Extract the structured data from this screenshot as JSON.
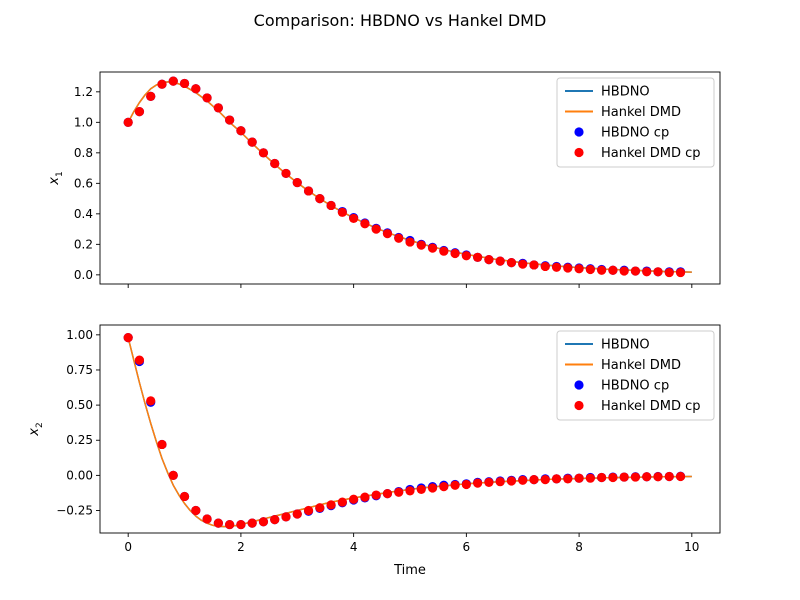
{
  "figure_title": "Comparison: HBDNO vs Hankel DMD",
  "colors": {
    "hbdno": "#1f77b4",
    "hankel": "#ff7f0e",
    "hbdno_cp": "#0000ff",
    "hankel_cp": "#ff0000"
  },
  "chart_data": [
    {
      "type": "line",
      "title": "",
      "xlabel": "",
      "ylabel": "x",
      "ylabel_sub": "1",
      "xlim": [
        -0.5,
        10.5
      ],
      "ylim": [
        -0.06,
        1.33
      ],
      "xticks": [
        0,
        2,
        4,
        6,
        8,
        10
      ],
      "yticks": [
        0.0,
        0.2,
        0.4,
        0.6,
        0.8,
        1.0,
        1.2
      ],
      "ytick_labels": [
        "0.0",
        "0.2",
        "0.4",
        "0.6",
        "0.8",
        "1.0",
        "1.2"
      ],
      "show_xtick_labels": false,
      "legend_position": "upper right",
      "legend": [
        "HBDNO",
        "Hankel DMD",
        "HBDNO cp",
        "Hankel DMD cp"
      ],
      "series": [
        {
          "name": "HBDNO",
          "kind": "line",
          "x": [
            0,
            0.1,
            0.2,
            0.3,
            0.4,
            0.5,
            0.6,
            0.7,
            0.8,
            0.9,
            1.0,
            1.2,
            1.4,
            1.6,
            1.8,
            2.0,
            2.2,
            2.4,
            2.6,
            2.8,
            3.0,
            3.2,
            3.4,
            3.6,
            3.8,
            4.0,
            4.4,
            4.8,
            5.2,
            5.6,
            6.0,
            6.5,
            7.0,
            7.5,
            8.0,
            8.5,
            9.0,
            9.5,
            10.0
          ],
          "y": [
            1.0,
            1.07,
            1.13,
            1.18,
            1.22,
            1.245,
            1.26,
            1.265,
            1.262,
            1.252,
            1.237,
            1.195,
            1.14,
            1.075,
            1.0,
            0.935,
            0.862,
            0.792,
            0.725,
            0.662,
            0.604,
            0.55,
            0.5,
            0.454,
            0.412,
            0.374,
            0.306,
            0.25,
            0.203,
            0.165,
            0.134,
            0.103,
            0.079,
            0.061,
            0.047,
            0.037,
            0.029,
            0.022,
            0.018
          ]
        },
        {
          "name": "Hankel DMD",
          "kind": "line",
          "x": [
            0,
            0.1,
            0.2,
            0.3,
            0.4,
            0.5,
            0.6,
            0.7,
            0.8,
            0.9,
            1.0,
            1.2,
            1.4,
            1.6,
            1.8,
            2.0,
            2.2,
            2.4,
            2.6,
            2.8,
            3.0,
            3.2,
            3.4,
            3.6,
            3.8,
            4.0,
            4.4,
            4.8,
            5.2,
            5.6,
            6.0,
            6.5,
            7.0,
            7.5,
            8.0,
            8.5,
            9.0,
            9.5,
            10.0
          ],
          "y": [
            1.0,
            1.07,
            1.13,
            1.18,
            1.22,
            1.245,
            1.26,
            1.265,
            1.262,
            1.252,
            1.237,
            1.195,
            1.14,
            1.075,
            1.0,
            0.935,
            0.862,
            0.792,
            0.725,
            0.662,
            0.604,
            0.55,
            0.5,
            0.454,
            0.412,
            0.374,
            0.306,
            0.25,
            0.203,
            0.165,
            0.134,
            0.103,
            0.079,
            0.061,
            0.047,
            0.037,
            0.029,
            0.022,
            0.018
          ]
        },
        {
          "name": "HBDNO cp",
          "kind": "scatter",
          "x": [
            0.0,
            0.2,
            0.4,
            0.6,
            0.8,
            1.0,
            1.2,
            1.4,
            1.6,
            1.8,
            2.0,
            2.2,
            2.4,
            2.6,
            2.8,
            3.0,
            3.2,
            3.4,
            3.6,
            3.8,
            4.0,
            4.2,
            4.4,
            4.6,
            4.8,
            5.0,
            5.2,
            5.4,
            5.6,
            5.8,
            6.0,
            6.2,
            6.4,
            6.6,
            6.8,
            7.0,
            7.2,
            7.4,
            7.6,
            7.8,
            8.0,
            8.2,
            8.4,
            8.6,
            8.8,
            9.0,
            9.2,
            9.4,
            9.6,
            9.8
          ],
          "y": [
            1.0,
            1.07,
            1.17,
            1.25,
            1.27,
            1.255,
            1.22,
            1.16,
            1.095,
            1.015,
            0.945,
            0.87,
            0.8,
            0.73,
            0.665,
            0.605,
            0.55,
            0.5,
            0.455,
            0.415,
            0.375,
            0.34,
            0.305,
            0.275,
            0.245,
            0.225,
            0.2,
            0.18,
            0.16,
            0.145,
            0.13,
            0.115,
            0.1,
            0.09,
            0.08,
            0.075,
            0.065,
            0.06,
            0.055,
            0.05,
            0.045,
            0.04,
            0.035,
            0.03,
            0.03,
            0.025,
            0.025,
            0.02,
            0.02,
            0.02
          ]
        },
        {
          "name": "Hankel DMD cp",
          "kind": "scatter",
          "x": [
            0.0,
            0.2,
            0.4,
            0.6,
            0.8,
            1.0,
            1.2,
            1.4,
            1.6,
            1.8,
            2.0,
            2.2,
            2.4,
            2.6,
            2.8,
            3.0,
            3.2,
            3.4,
            3.6,
            3.8,
            4.0,
            4.2,
            4.4,
            4.6,
            4.8,
            5.0,
            5.2,
            5.4,
            5.6,
            5.8,
            6.0,
            6.2,
            6.4,
            6.6,
            6.8,
            7.0,
            7.2,
            7.4,
            7.6,
            7.8,
            8.0,
            8.2,
            8.4,
            8.6,
            8.8,
            9.0,
            9.2,
            9.4,
            9.6,
            9.8
          ],
          "y": [
            1.0,
            1.07,
            1.17,
            1.25,
            1.27,
            1.255,
            1.22,
            1.16,
            1.095,
            1.015,
            0.945,
            0.87,
            0.8,
            0.73,
            0.665,
            0.605,
            0.55,
            0.5,
            0.455,
            0.41,
            0.37,
            0.335,
            0.3,
            0.27,
            0.24,
            0.215,
            0.195,
            0.175,
            0.155,
            0.14,
            0.125,
            0.115,
            0.1,
            0.09,
            0.08,
            0.07,
            0.065,
            0.055,
            0.05,
            0.045,
            0.04,
            0.035,
            0.03,
            0.03,
            0.025,
            0.025,
            0.02,
            0.02,
            0.015,
            0.015
          ]
        }
      ]
    },
    {
      "type": "line",
      "title": "",
      "xlabel": "Time",
      "ylabel": "x",
      "ylabel_sub": "2",
      "xlim": [
        -0.5,
        10.5
      ],
      "ylim": [
        -0.41,
        1.07
      ],
      "xticks": [
        0,
        2,
        4,
        6,
        8,
        10
      ],
      "yticks": [
        -0.25,
        0.0,
        0.25,
        0.5,
        0.75,
        1.0
      ],
      "ytick_labels": [
        "−0.25",
        "0.00",
        "0.25",
        "0.50",
        "0.75",
        "1.00"
      ],
      "show_xtick_labels": true,
      "legend_position": "upper right",
      "legend": [
        "HBDNO",
        "Hankel DMD",
        "HBDNO cp",
        "Hankel DMD cp"
      ],
      "series": [
        {
          "name": "HBDNO",
          "kind": "line",
          "x": [
            0,
            0.1,
            0.2,
            0.3,
            0.4,
            0.5,
            0.6,
            0.7,
            0.8,
            0.9,
            1.0,
            1.1,
            1.2,
            1.3,
            1.4,
            1.5,
            1.6,
            1.7,
            1.8,
            1.9,
            2.0,
            2.2,
            2.4,
            2.6,
            2.8,
            3.0,
            3.2,
            3.4,
            3.6,
            3.8,
            4.0,
            4.4,
            4.8,
            5.2,
            5.6,
            6.0,
            6.5,
            7.0,
            7.5,
            8.0,
            8.5,
            9.0,
            9.5,
            10.0
          ],
          "y": [
            0.98,
            0.82,
            0.66,
            0.51,
            0.37,
            0.24,
            0.12,
            0.02,
            -0.07,
            -0.14,
            -0.2,
            -0.25,
            -0.29,
            -0.32,
            -0.34,
            -0.355,
            -0.362,
            -0.365,
            -0.363,
            -0.358,
            -0.35,
            -0.33,
            -0.31,
            -0.29,
            -0.27,
            -0.25,
            -0.23,
            -0.21,
            -0.19,
            -0.175,
            -0.16,
            -0.135,
            -0.11,
            -0.09,
            -0.075,
            -0.06,
            -0.047,
            -0.037,
            -0.028,
            -0.022,
            -0.017,
            -0.013,
            -0.01,
            -0.008
          ]
        },
        {
          "name": "Hankel DMD",
          "kind": "line",
          "x": [
            0,
            0.1,
            0.2,
            0.3,
            0.4,
            0.5,
            0.6,
            0.7,
            0.8,
            0.9,
            1.0,
            1.1,
            1.2,
            1.3,
            1.4,
            1.5,
            1.6,
            1.7,
            1.8,
            1.9,
            2.0,
            2.2,
            2.4,
            2.6,
            2.8,
            3.0,
            3.2,
            3.4,
            3.6,
            3.8,
            4.0,
            4.4,
            4.8,
            5.2,
            5.6,
            6.0,
            6.5,
            7.0,
            7.5,
            8.0,
            8.5,
            9.0,
            9.5,
            10.0
          ],
          "y": [
            0.98,
            0.82,
            0.66,
            0.51,
            0.37,
            0.24,
            0.12,
            0.02,
            -0.07,
            -0.14,
            -0.2,
            -0.25,
            -0.29,
            -0.32,
            -0.34,
            -0.355,
            -0.362,
            -0.365,
            -0.363,
            -0.358,
            -0.35,
            -0.33,
            -0.31,
            -0.29,
            -0.27,
            -0.25,
            -0.23,
            -0.21,
            -0.19,
            -0.175,
            -0.16,
            -0.135,
            -0.11,
            -0.09,
            -0.075,
            -0.06,
            -0.047,
            -0.037,
            -0.028,
            -0.022,
            -0.017,
            -0.013,
            -0.01,
            -0.008
          ]
        },
        {
          "name": "HBDNO cp",
          "kind": "scatter",
          "x": [
            0.0,
            0.2,
            0.4,
            0.6,
            0.8,
            1.0,
            1.2,
            1.4,
            1.6,
            1.8,
            2.0,
            2.2,
            2.4,
            2.6,
            2.8,
            3.0,
            3.2,
            3.4,
            3.6,
            3.8,
            4.0,
            4.2,
            4.4,
            4.6,
            4.8,
            5.0,
            5.2,
            5.4,
            5.6,
            5.8,
            6.0,
            6.2,
            6.4,
            6.6,
            6.8,
            7.0,
            7.2,
            7.4,
            7.6,
            7.8,
            8.0,
            8.2,
            8.4,
            8.6,
            8.8,
            9.0,
            9.2,
            9.4,
            9.6,
            9.8
          ],
          "y": [
            0.98,
            0.81,
            0.52,
            0.22,
            0.0,
            -0.15,
            -0.25,
            -0.31,
            -0.34,
            -0.35,
            -0.35,
            -0.34,
            -0.33,
            -0.315,
            -0.295,
            -0.275,
            -0.255,
            -0.235,
            -0.215,
            -0.195,
            -0.175,
            -0.16,
            -0.145,
            -0.13,
            -0.115,
            -0.1,
            -0.09,
            -0.08,
            -0.07,
            -0.065,
            -0.06,
            -0.05,
            -0.045,
            -0.04,
            -0.035,
            -0.03,
            -0.03,
            -0.025,
            -0.025,
            -0.02,
            -0.02,
            -0.015,
            -0.015,
            -0.012,
            -0.012,
            -0.01,
            -0.01,
            -0.008,
            -0.008,
            -0.006
          ]
        },
        {
          "name": "Hankel DMD cp",
          "kind": "scatter",
          "x": [
            0.0,
            0.2,
            0.4,
            0.6,
            0.8,
            1.0,
            1.2,
            1.4,
            1.6,
            1.8,
            2.0,
            2.2,
            2.4,
            2.6,
            2.8,
            3.0,
            3.2,
            3.4,
            3.6,
            3.8,
            4.0,
            4.2,
            4.4,
            4.6,
            4.8,
            5.0,
            5.2,
            5.4,
            5.6,
            5.8,
            6.0,
            6.2,
            6.4,
            6.6,
            6.8,
            7.0,
            7.2,
            7.4,
            7.6,
            7.8,
            8.0,
            8.2,
            8.4,
            8.6,
            8.8,
            9.0,
            9.2,
            9.4,
            9.6,
            9.8
          ],
          "y": [
            0.98,
            0.82,
            0.53,
            0.22,
            0.0,
            -0.15,
            -0.25,
            -0.31,
            -0.34,
            -0.35,
            -0.35,
            -0.34,
            -0.33,
            -0.315,
            -0.295,
            -0.275,
            -0.25,
            -0.23,
            -0.21,
            -0.19,
            -0.17,
            -0.155,
            -0.14,
            -0.13,
            -0.12,
            -0.11,
            -0.1,
            -0.09,
            -0.08,
            -0.07,
            -0.065,
            -0.055,
            -0.05,
            -0.045,
            -0.04,
            -0.035,
            -0.03,
            -0.03,
            -0.025,
            -0.025,
            -0.02,
            -0.02,
            -0.015,
            -0.015,
            -0.012,
            -0.012,
            -0.01,
            -0.01,
            -0.008,
            -0.008
          ]
        }
      ]
    }
  ]
}
